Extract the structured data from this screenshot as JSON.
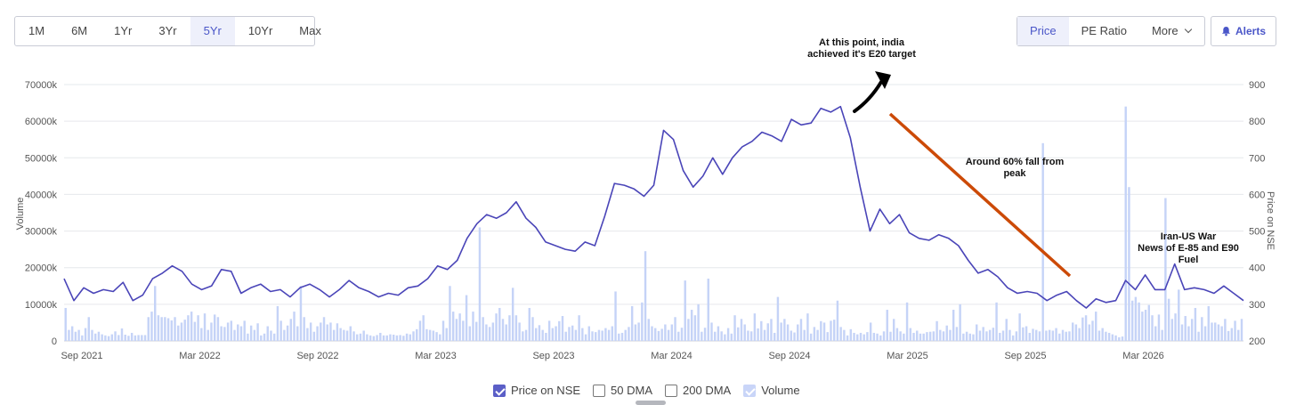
{
  "range_buttons": [
    "1M",
    "6M",
    "1Yr",
    "3Yr",
    "5Yr",
    "10Yr",
    "Max"
  ],
  "active_range": "5Yr",
  "metric_buttons": [
    "Price",
    "PE Ratio",
    "More"
  ],
  "active_metric": "Price",
  "alerts_label": "Alerts",
  "legend": {
    "price": "Price on NSE",
    "dma50": "50 DMA",
    "dma200": "200 DMA",
    "volume": "Volume"
  },
  "colors": {
    "price_line": "#4a45b8",
    "volume_bars": "#c5d3f7",
    "annotation_arrow_black": "#000000",
    "annotation_arrow_orange": "#cc4a07",
    "accent": "#4a56c8"
  },
  "chart_data": {
    "type": "line",
    "ylabel_left": "Volume",
    "ylabel_right": "Price on NSE",
    "y_left_ticks": [
      "0",
      "10000k",
      "20000k",
      "30000k",
      "40000k",
      "50000k",
      "60000k",
      "70000k"
    ],
    "y_left_range": [
      0,
      70000
    ],
    "y_right_ticks": [
      "200",
      "300",
      "400",
      "500",
      "600",
      "700",
      "800",
      "900"
    ],
    "y_right_range": [
      200,
      900
    ],
    "x_ticks": [
      "Sep 2021",
      "Mar 2022",
      "Sep 2022",
      "Mar 2023",
      "Sep 2023",
      "Mar 2024",
      "Sep 2024",
      "Mar 2025",
      "Sep 2025",
      "Mar 2026"
    ],
    "x_range_months": [
      0,
      60
    ],
    "grid": true,
    "series": [
      {
        "name": "Price on NSE",
        "kind": "line",
        "x_months": [
          0,
          0.5,
          1,
          1.5,
          2,
          2.5,
          3,
          3.5,
          4,
          4.5,
          5,
          5.5,
          6,
          6.5,
          7,
          7.5,
          8,
          8.5,
          9,
          9.5,
          10,
          10.5,
          11,
          11.5,
          12,
          12.5,
          13,
          13.5,
          14,
          14.5,
          15,
          15.5,
          16,
          16.5,
          17,
          17.5,
          18,
          18.5,
          19,
          19.5,
          20,
          20.5,
          21,
          21.5,
          22,
          22.5,
          23,
          23.5,
          24,
          24.5,
          25,
          25.5,
          26,
          26.5,
          27,
          27.5,
          28,
          28.5,
          29,
          29.5,
          30,
          30.5,
          31,
          31.5,
          32,
          32.5,
          33,
          33.5,
          34,
          34.5,
          35,
          35.5,
          36,
          36.5,
          37,
          37.5,
          38,
          38.5,
          39,
          39.5,
          40,
          40.5,
          41,
          41.5,
          42,
          42.5,
          43,
          43.5,
          44,
          44.5,
          45,
          45.5,
          46,
          46.5,
          47,
          47.5,
          48,
          48.5,
          49,
          49.5,
          50,
          50.5,
          51,
          51.5,
          52,
          52.5,
          53,
          53.5,
          54,
          54.5,
          55,
          55.5,
          56,
          56.5,
          57,
          57.5,
          58,
          58.5,
          59,
          59.5,
          60
        ],
        "values": [
          370,
          310,
          345,
          330,
          340,
          335,
          360,
          310,
          325,
          370,
          385,
          405,
          390,
          355,
          340,
          350,
          395,
          390,
          330,
          345,
          355,
          335,
          340,
          320,
          345,
          355,
          340,
          320,
          340,
          365,
          345,
          335,
          320,
          330,
          325,
          345,
          350,
          370,
          405,
          395,
          420,
          480,
          520,
          545,
          535,
          550,
          580,
          535,
          510,
          470,
          460,
          450,
          445,
          470,
          460,
          540,
          630,
          625,
          615,
          595,
          625,
          775,
          750,
          665,
          620,
          650,
          700,
          655,
          700,
          730,
          745,
          770,
          760,
          745,
          805,
          790,
          795,
          835,
          825,
          840,
          755,
          620,
          500,
          560,
          520,
          545,
          495,
          480,
          475,
          490,
          480,
          460,
          420,
          385,
          395,
          375,
          345,
          330,
          335,
          330,
          310,
          325,
          335,
          310,
          290,
          315,
          305,
          310,
          365,
          340,
          380,
          340,
          340,
          410,
          340,
          345,
          340,
          330,
          350,
          330,
          310
        ]
      },
      {
        "name": "Volume",
        "kind": "bar",
        "unit": "k",
        "values_k": [
          9000,
          3000,
          4000,
          2500,
          3000,
          1500,
          3500,
          6500,
          3000,
          2000,
          2500,
          1800,
          1500,
          1300,
          1800,
          2600,
          1600,
          3400,
          1700,
          1400,
          2200,
          1500,
          1600,
          1600,
          1600,
          6500,
          8000,
          15000,
          7000,
          6500,
          6500,
          6200,
          5600,
          6500,
          4200,
          5000,
          5800,
          7000,
          8000,
          5200,
          7000,
          3500,
          7500,
          3000,
          5000,
          7200,
          6500,
          4000,
          3800,
          5000,
          5500,
          3000,
          4500,
          4000,
          5500,
          2000,
          4200,
          3000,
          4800,
          1500,
          2000,
          4000,
          2800,
          2000,
          9500,
          5500,
          3000,
          4200,
          6000,
          8000,
          4000,
          15000,
          6500,
          3500,
          5000,
          2500,
          4000,
          5000,
          6500,
          4500,
          5000,
          3000,
          4800,
          3500,
          3000,
          2800,
          4000,
          2600,
          1800,
          2000,
          2800,
          1800,
          1500,
          1300,
          1600,
          2200,
          1500,
          1500,
          1800,
          1700,
          1500,
          1600,
          1400,
          2000,
          1800,
          2600,
          3200,
          5500,
          7000,
          3200,
          3000,
          2800,
          2400,
          1800,
          5500,
          3500,
          15000,
          8000,
          6000,
          7500,
          5500,
          12500,
          4000,
          8000,
          5200,
          31000,
          6500,
          4500,
          3800,
          5000,
          7500,
          9000,
          6000,
          4500,
          7000,
          14500,
          7000,
          5000,
          2600,
          3000,
          9000,
          6500,
          3500,
          4300,
          3000,
          2200,
          5500,
          3500,
          4000,
          5400,
          6800,
          2500,
          3800,
          4200,
          3000,
          7000,
          3500,
          1800,
          4000,
          2600,
          2400,
          3000,
          2800,
          3500,
          3000,
          4000,
          13500,
          2000,
          2200,
          3000,
          3800,
          9500,
          4500,
          5000,
          10500,
          24500,
          6000,
          4000,
          3500,
          2700,
          3300,
          4500,
          3000,
          4500,
          6500,
          2500,
          3600,
          16500,
          6000,
          8500,
          7000,
          10000,
          2500,
          3600,
          17000,
          5000,
          2500,
          4000,
          2600,
          1800,
          3500,
          2000,
          7000,
          3700,
          6000,
          4500,
          2800,
          2600,
          7500,
          3400,
          5400,
          3000,
          4800,
          6000,
          2200,
          12000,
          5000,
          6000,
          4500,
          2800,
          2300,
          4500,
          6000,
          3000,
          7500,
          2000,
          3800,
          3000,
          5400,
          5000,
          2400,
          5500,
          5800,
          11000,
          3800,
          3000,
          1500,
          3200,
          2200,
          1800,
          2200,
          1800,
          2400,
          5000,
          2200,
          2000,
          1500,
          2600,
          8500,
          2500,
          6000,
          3500,
          2600,
          2000,
          10500,
          3500,
          2200,
          2800,
          2000,
          2000,
          2400,
          2500,
          2600,
          5400,
          3000,
          2600,
          4200,
          3000,
          8500,
          3800,
          10000,
          2000,
          2500,
          2000,
          1800,
          4500,
          2800,
          3800,
          2600,
          3000,
          3600,
          10500,
          2200,
          2800,
          6000,
          3000,
          1500,
          2600,
          7500,
          3700,
          4000,
          2200,
          3300,
          3000,
          2600,
          54000,
          2800,
          3000,
          2800,
          3500,
          2000,
          3000,
          2500,
          2600,
          5000,
          4500,
          3500,
          6400,
          7000,
          4500,
          5500,
          8000,
          2800,
          3500,
          2500,
          2200,
          1800,
          1500,
          1000,
          1200,
          64000,
          42000,
          11000,
          12000,
          10500,
          8000,
          8500,
          9800,
          7000,
          4000,
          7200,
          3000,
          39000,
          11500,
          6000,
          7500,
          14000,
          4500,
          6800,
          4000,
          6000,
          9000,
          2500,
          6500,
          4000,
          9500,
          5000,
          5000,
          4500,
          4000,
          6000,
          2700,
          3500,
          5500,
          3000,
          6000
        ]
      }
    ],
    "annotations": [
      {
        "text": "At this point, india achieved it's E20 target",
        "lines": [
          "At this point, india",
          "achieved it's E20 target"
        ]
      },
      {
        "text": "Around 60% fall from peak",
        "lines": [
          "Around 60% fall from",
          "peak"
        ]
      },
      {
        "text": "Iran-US War News of E-85 and E90 Fuel",
        "lines": [
          "Iran-US War",
          "News of E-85 and E90",
          "Fuel"
        ]
      }
    ]
  }
}
